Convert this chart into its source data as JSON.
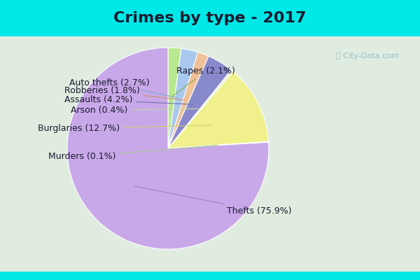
{
  "title": "Crimes by type - 2017",
  "slices": [
    {
      "label": "Thefts",
      "pct": 75.9,
      "color": "#c8a8e8"
    },
    {
      "label": "Murders",
      "pct": 0.1,
      "color": "#c8ddb8"
    },
    {
      "label": "Burglaries",
      "pct": 12.7,
      "color": "#f0f08c"
    },
    {
      "label": "Arson",
      "pct": 0.4,
      "color": "#e0f0d0"
    },
    {
      "label": "Assaults",
      "pct": 4.2,
      "color": "#8888cc"
    },
    {
      "label": "Robberies",
      "pct": 1.8,
      "color": "#f0c098"
    },
    {
      "label": "Auto thefts",
      "pct": 2.7,
      "color": "#a8c8f0"
    },
    {
      "label": "Rapes",
      "pct": 2.1,
      "color": "#b8e890"
    }
  ],
  "bg_cyan": "#00e8e8",
  "bg_main": "#e0ece0",
  "title_fontsize": 16,
  "label_fontsize": 9,
  "watermark": "City-Data.com",
  "title_color": "#1a1a2e"
}
